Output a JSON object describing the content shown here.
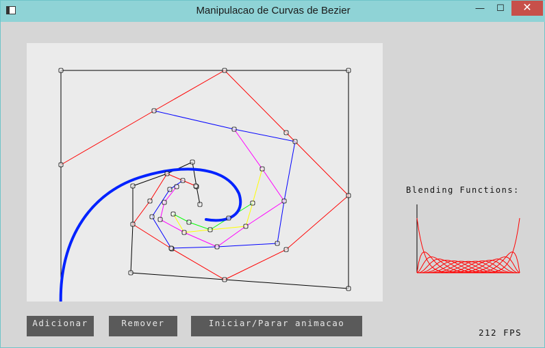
{
  "window": {
    "title": "Manipulacao de Curvas de Bezier",
    "minimize_glyph": "—",
    "maximize_glyph": "☐",
    "close_glyph": "✕"
  },
  "canvas": {
    "colors": {
      "background": "#ebebeb",
      "polygon": "#000000",
      "level1": "#ff0000",
      "level2": "#0000ff",
      "level3": "#ff00ff",
      "level4": "#ffff00",
      "level5": "#00ff00",
      "curve": "#0022ff"
    }
  },
  "blending": {
    "label": "Blending Functions:",
    "color": "#ff0000"
  },
  "buttons": {
    "add": "Adicionar",
    "remove": "Remover",
    "animate": "Iniciar/Parar animacao"
  },
  "status": {
    "fps": "212 FPS"
  }
}
